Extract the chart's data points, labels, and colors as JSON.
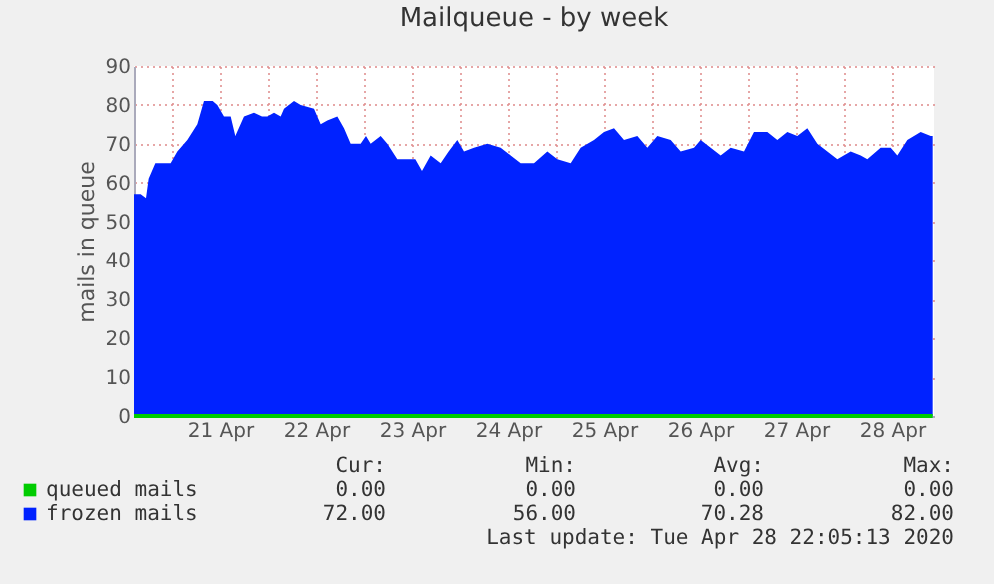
{
  "chart_data": {
    "type": "area",
    "title": "Mailqueue - by week",
    "ylabel": "mails in queue",
    "xlim": [
      "2020-04-20T14:30",
      "2020-04-28T22:30"
    ],
    "ylim": [
      0,
      90
    ],
    "yticks": [
      0,
      10,
      20,
      30,
      40,
      50,
      60,
      70,
      80,
      90
    ],
    "xticks": [
      {
        "value": "2020-04-21T00:00",
        "label": null
      },
      {
        "value": "2020-04-21T12:00",
        "label": "21 Apr"
      },
      {
        "value": "2020-04-22T00:00",
        "label": null
      },
      {
        "value": "2020-04-22T12:00",
        "label": "22 Apr"
      },
      {
        "value": "2020-04-23T00:00",
        "label": null
      },
      {
        "value": "2020-04-23T12:00",
        "label": "23 Apr"
      },
      {
        "value": "2020-04-24T00:00",
        "label": null
      },
      {
        "value": "2020-04-24T12:00",
        "label": "24 Apr"
      },
      {
        "value": "2020-04-25T00:00",
        "label": null
      },
      {
        "value": "2020-04-25T12:00",
        "label": "25 Apr"
      },
      {
        "value": "2020-04-26T00:00",
        "label": null
      },
      {
        "value": "2020-04-26T12:00",
        "label": "26 Apr"
      },
      {
        "value": "2020-04-27T00:00",
        "label": null
      },
      {
        "value": "2020-04-27T12:00",
        "label": "27 Apr"
      },
      {
        "value": "2020-04-28T00:00",
        "label": null
      },
      {
        "value": "2020-04-28T12:00",
        "label": "28 Apr"
      }
    ],
    "grid": true,
    "legend": "bottom",
    "series": [
      {
        "name": "queued mails",
        "type": "line",
        "color": "#00cc00",
        "x": [
          "2020-04-20T14:30",
          "2020-04-28T22:10"
        ],
        "values": [
          0,
          0
        ]
      },
      {
        "name": "frozen mails",
        "type": "area",
        "color": "#0022ff",
        "x": [
          "2020-04-20T14:30",
          "2020-04-20T16:10",
          "2020-04-20T17:30",
          "2020-04-20T18:10",
          "2020-04-20T19:50",
          "2020-04-20T21:10",
          "2020-04-20T23:40",
          "2020-04-21T01:20",
          "2020-04-21T03:50",
          "2020-04-21T06:20",
          "2020-04-21T08:00",
          "2020-04-21T10:10",
          "2020-04-21T11:20",
          "2020-04-21T13:00",
          "2020-04-21T14:40",
          "2020-04-21T15:50",
          "2020-04-21T18:00",
          "2020-04-21T20:30",
          "2020-04-21T22:30",
          "2020-04-21T23:50",
          "2020-04-22T01:30",
          "2020-04-22T03:10",
          "2020-04-22T04:00",
          "2020-04-22T06:30",
          "2020-04-22T08:10",
          "2020-04-22T11:30",
          "2020-04-22T13:10",
          "2020-04-22T14:50",
          "2020-04-22T17:20",
          "2020-04-22T19:00",
          "2020-04-22T20:40",
          "2020-04-22T23:10",
          "2020-04-23T00:30",
          "2020-04-23T01:40",
          "2020-04-23T04:10",
          "2020-04-23T05:50",
          "2020-04-23T08:20",
          "2020-04-23T10:50",
          "2020-04-23T12:50",
          "2020-04-23T14:30",
          "2020-04-23T16:40",
          "2020-04-23T19:10",
          "2020-04-23T21:10",
          "2020-04-23T23:20",
          "2020-04-24T01:00",
          "2020-04-24T03:30",
          "2020-04-24T06:50",
          "2020-04-24T10:10",
          "2020-04-24T12:40",
          "2020-04-24T15:10",
          "2020-04-24T18:30",
          "2020-04-24T21:50",
          "2020-04-25T00:20",
          "2020-04-25T03:40",
          "2020-04-25T06:10",
          "2020-04-25T09:30",
          "2020-04-25T12:00",
          "2020-04-25T14:30",
          "2020-04-25T17:00",
          "2020-04-25T20:20",
          "2020-04-25T22:50",
          "2020-04-26T01:20",
          "2020-04-26T04:40",
          "2020-04-26T07:10",
          "2020-04-26T10:30",
          "2020-04-26T12:10",
          "2020-04-26T14:40",
          "2020-04-26T17:10",
          "2020-04-26T19:40",
          "2020-04-26T23:00",
          "2020-04-27T01:30",
          "2020-04-27T04:50",
          "2020-04-27T07:20",
          "2020-04-27T09:50",
          "2020-04-27T12:20",
          "2020-04-27T14:50",
          "2020-04-27T17:20",
          "2020-04-27T19:50",
          "2020-04-27T22:20",
          "2020-04-28T01:40",
          "2020-04-28T04:10",
          "2020-04-28T05:50",
          "2020-04-28T09:10",
          "2020-04-28T11:40",
          "2020-04-28T13:20",
          "2020-04-28T15:50",
          "2020-04-28T19:10",
          "2020-04-28T21:40",
          "2020-04-28T22:10"
        ],
        "values": [
          57,
          57,
          56,
          61,
          65,
          65,
          65,
          68,
          71,
          75,
          81,
          81,
          80,
          77,
          77,
          72,
          77,
          78,
          77,
          77,
          78,
          77,
          79,
          81,
          80,
          79,
          75,
          76,
          77,
          74,
          70,
          70,
          72,
          70,
          72,
          70,
          66,
          66,
          66,
          63,
          67,
          65,
          68,
          71,
          68,
          69,
          70,
          69,
          67,
          65,
          65,
          68,
          66,
          65,
          69,
          71,
          73,
          74,
          71,
          72,
          69,
          72,
          71,
          68,
          69,
          71,
          69,
          67,
          69,
          68,
          73,
          73,
          71,
          73,
          72,
          74,
          70,
          68,
          66,
          68,
          67,
          66,
          69,
          69,
          67,
          71,
          73,
          72,
          72
        ]
      }
    ],
    "annotations": [
      "Cur:",
      "Min:",
      "Avg:",
      "Max:",
      "0.00",
      "0.00",
      "0.00",
      "0.00",
      "72.00",
      "56.00",
      "70.28",
      "82.00",
      "Last update: Tue Apr 28 22:05:13 2020"
    ]
  }
}
